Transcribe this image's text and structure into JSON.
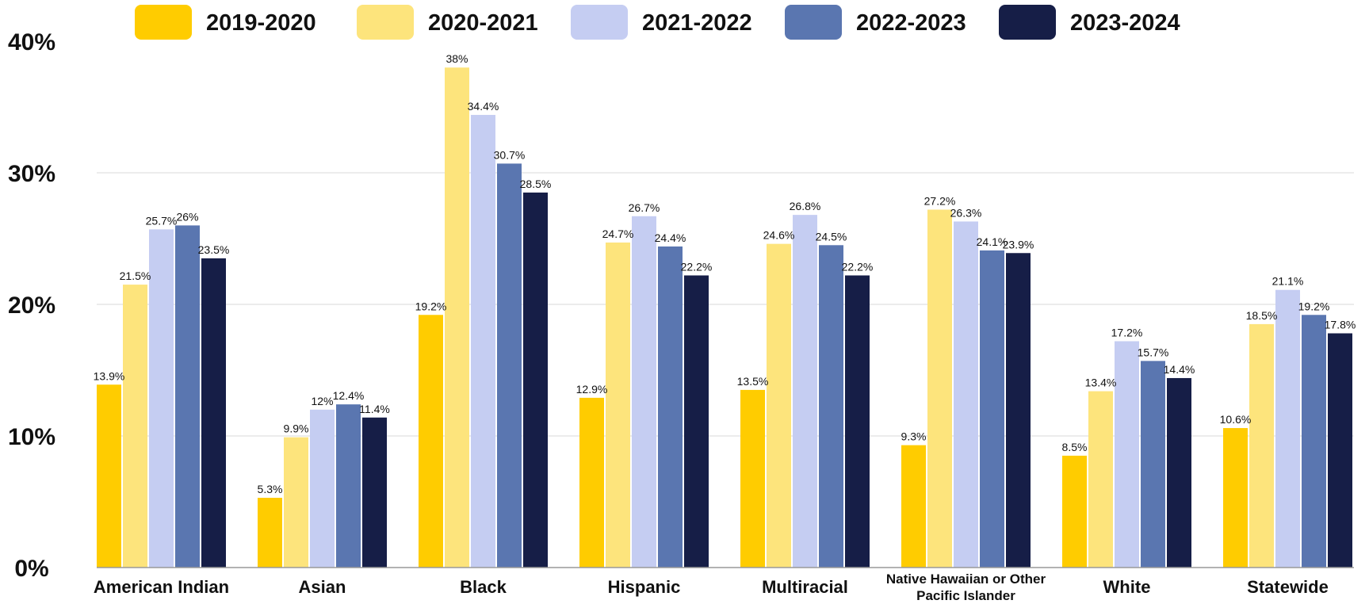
{
  "chart_data": {
    "type": "bar",
    "title": "",
    "xlabel": "",
    "ylabel": "",
    "ylim": [
      0,
      40
    ],
    "y_ticks": [
      "0%",
      "10%",
      "20%",
      "30%",
      "40%"
    ],
    "y_tick_values": [
      0,
      10,
      20,
      30,
      40
    ],
    "grid": true,
    "legend_position": "top",
    "categories": [
      "American Indian",
      "Asian",
      "Black",
      "Hispanic",
      "Multiracial",
      "Native Hawaiian or Other Pacific Islander",
      "White",
      "Statewide"
    ],
    "series": [
      {
        "name": "2019-2020",
        "color": "#FFCC00",
        "values": [
          13.9,
          5.3,
          19.2,
          12.9,
          13.5,
          9.3,
          8.5,
          10.6
        ],
        "labels": [
          "13.9%",
          "5.3%",
          "19.2%",
          "12.9%",
          "13.5%",
          "9.3%",
          "8.5%",
          "10.6%"
        ]
      },
      {
        "name": "2020-2021",
        "color": "#FDE47C",
        "values": [
          21.5,
          9.9,
          38,
          24.7,
          24.6,
          27.2,
          13.4,
          18.5
        ],
        "labels": [
          "21.5%",
          "9.9%",
          "38%",
          "24.7%",
          "24.6%",
          "27.2%",
          "13.4%",
          "18.5%"
        ]
      },
      {
        "name": "2021-2022",
        "color": "#C5CDF2",
        "values": [
          25.7,
          12,
          34.4,
          26.7,
          26.8,
          26.3,
          17.2,
          21.1
        ],
        "labels": [
          "25.7%",
          "12%",
          "34.4%",
          "26.7%",
          "26.8%",
          "26.3%",
          "17.2%",
          "21.1%"
        ]
      },
      {
        "name": "2022-2023",
        "color": "#5A76B0",
        "values": [
          26,
          12.4,
          30.7,
          24.4,
          24.5,
          24.1,
          15.7,
          19.2
        ],
        "labels": [
          "26%",
          "12.4%",
          "30.7%",
          "24.4%",
          "24.5%",
          "24.1%",
          "15.7%",
          "19.2%"
        ]
      },
      {
        "name": "2023-2024",
        "color": "#161E47",
        "values": [
          23.5,
          11.4,
          28.5,
          22.2,
          22.2,
          23.9,
          14.4,
          17.8
        ],
        "labels": [
          "23.5%",
          "11.4%",
          "28.5%",
          "22.2%",
          "22.2%",
          "23.9%",
          "14.4%",
          "17.8%"
        ]
      }
    ]
  }
}
